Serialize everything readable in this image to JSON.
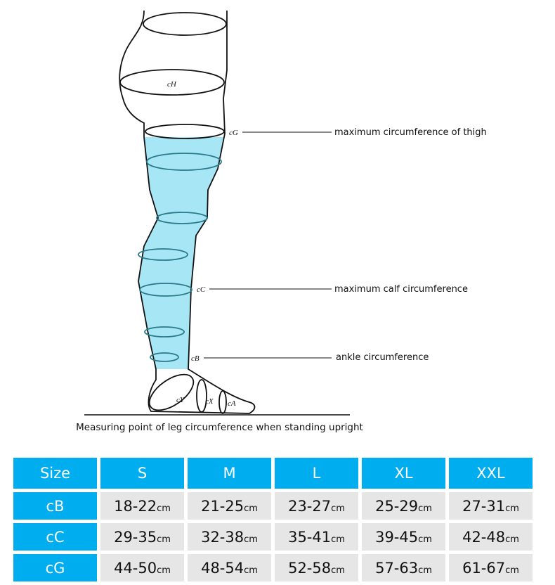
{
  "diagram": {
    "labels": {
      "cH": "cH",
      "cG": "cG",
      "cC": "cC",
      "cB": "cB",
      "cY": "cY",
      "cX": "cX",
      "cA": "cA"
    },
    "annotations": {
      "cG": "maximum circumference of thigh",
      "cC": "maximum calf circumference",
      "cB": "ankle circumference"
    },
    "caption": "Measuring point of leg circumference when standing upright",
    "highlight_color": "#a6e6f5"
  },
  "table": {
    "header": [
      "Size",
      "S",
      "M",
      "L",
      "XL",
      "XXL"
    ],
    "unit": "cm",
    "rows": [
      {
        "label": "cB",
        "values": [
          "18-22",
          "21-25",
          "23-27",
          "25-29",
          "27-31"
        ]
      },
      {
        "label": "cC",
        "values": [
          "29-35",
          "32-38",
          "35-41",
          "39-45",
          "42-48"
        ]
      },
      {
        "label": "cG",
        "values": [
          "44-50",
          "48-54",
          "52-58",
          "57-63",
          "61-67"
        ]
      }
    ],
    "colors": {
      "header": "#00aeef",
      "cell": "#e6e6e6"
    }
  }
}
